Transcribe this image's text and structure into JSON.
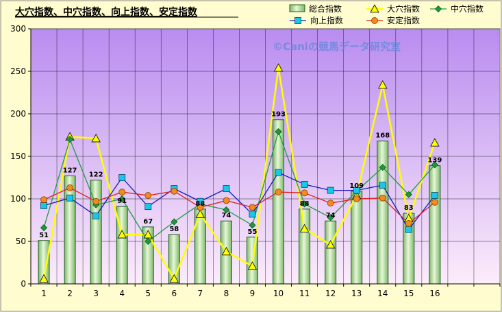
{
  "chart_data": {
    "type": "bar",
    "title": "大穴指数、中穴指数、向上指数、安定指数",
    "watermark": "©Caniの競馬データ研究室",
    "categories": [
      "1",
      "2",
      "3",
      "4",
      "5",
      "6",
      "7",
      "8",
      "9",
      "10",
      "11",
      "12",
      "13",
      "14",
      "15",
      "16"
    ],
    "x_slots": 18,
    "ylim": [
      0,
      300
    ],
    "yticks": [
      0,
      50,
      100,
      150,
      200,
      250,
      300
    ],
    "grid": true,
    "legend_position": "top-right",
    "colors": {
      "plot_top": "#b98cf0",
      "plot_bottom": "#fcecfb",
      "bar_fill": "#c6e8b4",
      "bar_stroke": "#1f5e1f",
      "daiketsu": "#ffff00",
      "chuketsu": "#1e9a3c",
      "kojo": "#1818b8",
      "kojo_marker": "#19c8e8",
      "antei": "#e02020",
      "antei_marker": "#f28a1c"
    },
    "bar_series": {
      "name": "総合指数",
      "values": [
        51,
        127,
        122,
        91,
        67,
        58,
        88,
        74,
        55,
        193,
        88,
        74,
        109,
        168,
        83,
        139
      ]
    },
    "series": [
      {
        "name": "大穴指数",
        "marker": "triangle",
        "values": [
          6,
          173,
          171,
          58,
          58,
          6,
          82,
          38,
          21,
          254,
          65,
          46,
          104,
          234,
          77,
          166
        ]
      },
      {
        "name": "中穴指数",
        "marker": "diamond",
        "values": [
          66,
          170,
          93,
          100,
          50,
          73,
          94,
          87,
          69,
          179,
          94,
          78,
          109,
          137,
          105,
          140
        ]
      },
      {
        "name": "向上指数",
        "marker": "square",
        "values": [
          92,
          101,
          80,
          125,
          91,
          112,
          97,
          112,
          82,
          131,
          117,
          110,
          110,
          116,
          64,
          104
        ]
      },
      {
        "name": "安定指数",
        "marker": "circle",
        "values": [
          99,
          113,
          97,
          108,
          104,
          109,
          90,
          98,
          90,
          108,
          107,
          95,
          100,
          101,
          71,
          96
        ]
      }
    ]
  }
}
